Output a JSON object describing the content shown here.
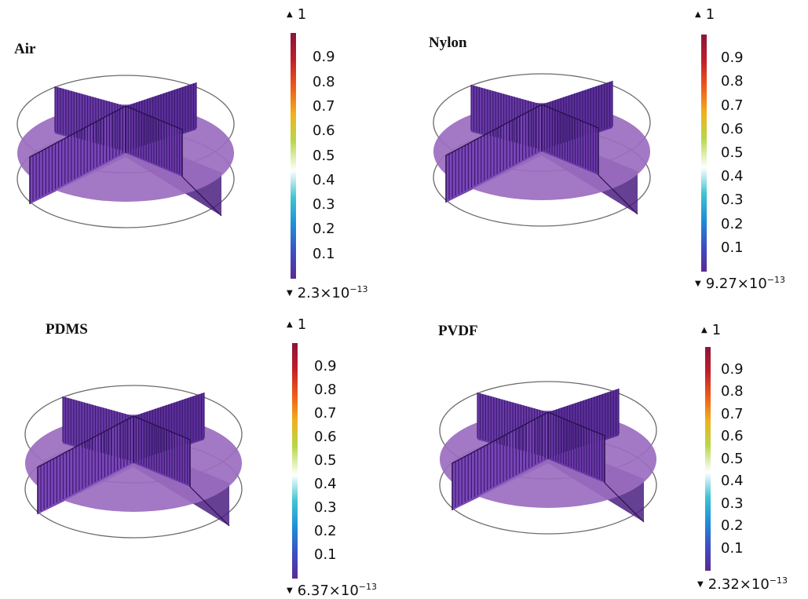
{
  "colormap": [
    "#5a2a93",
    "#3d4fc4",
    "#1f8fd6",
    "#41c4d2",
    "#ffffff",
    "#b7d84a",
    "#efb21c",
    "#ef5a1a",
    "#c11e2a",
    "#8b1538"
  ],
  "panels": [
    {
      "title": "Air",
      "max": "1",
      "min_mantissa": "2.3",
      "min_times": "×10",
      "min_exp": "−13",
      "ticks": [
        "0.9",
        "0.8",
        "0.7",
        "0.6",
        "0.5",
        "0.4",
        "0.3",
        "0.2",
        "0.1"
      ]
    },
    {
      "title": "Nylon",
      "max": "1",
      "min_mantissa": "9.27",
      "min_times": "×10",
      "min_exp": "−13",
      "ticks": [
        "0.9",
        "0.8",
        "0.7",
        "0.6",
        "0.5",
        "0.4",
        "0.3",
        "0.2",
        "0.1"
      ]
    },
    {
      "title": "PDMS",
      "max": "1",
      "min_mantissa": "6.37",
      "min_times": "×10",
      "min_exp": "−13",
      "ticks": [
        "0.9",
        "0.8",
        "0.7",
        "0.6",
        "0.5",
        "0.4",
        "0.3",
        "0.2",
        "0.1"
      ]
    },
    {
      "title": "PVDF",
      "max": "1",
      "min_mantissa": "2.32",
      "min_times": "×10",
      "min_exp": "−13",
      "ticks": [
        "0.9",
        "0.8",
        "0.7",
        "0.6",
        "0.5",
        "0.4",
        "0.3",
        "0.2",
        "0.1"
      ]
    }
  ]
}
